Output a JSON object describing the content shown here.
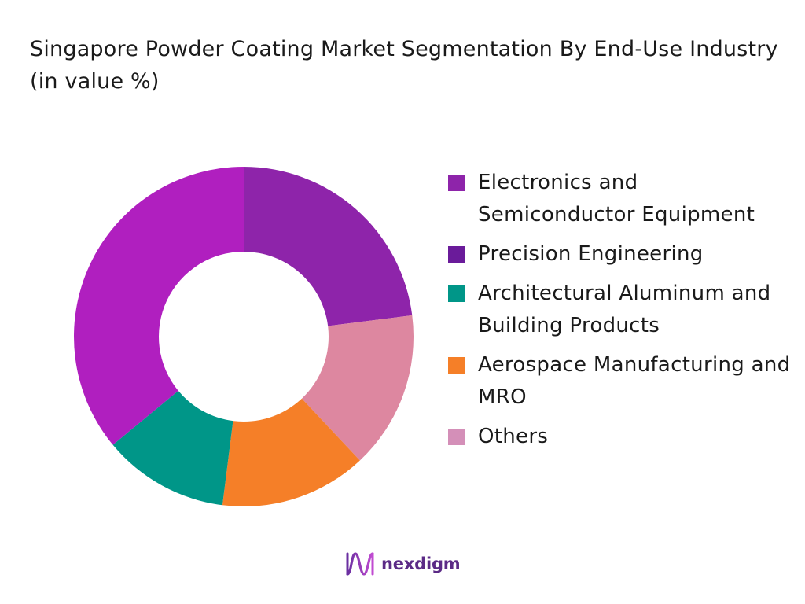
{
  "title": "Singapore Powder Coating Market Segmentation By End-Use Industry (in value %)",
  "chart_data": {
    "type": "pie",
    "donut": true,
    "legend_position": "right",
    "categories": [
      "Electronics and Semiconductor Equipment",
      "Precision Engineering",
      "Architectural Aluminum and Building Products",
      "Aerospace Manufacturing and MRO",
      "Others"
    ],
    "values": [
      23,
      36,
      12,
      14,
      15
    ],
    "colors": [
      "#8e24aa",
      "#b01fbf",
      "#009688",
      "#f57f28",
      "#dd87a0"
    ],
    "legend_colors": [
      "#8e24aa",
      "#6a1b9a",
      "#009688",
      "#f57f28",
      "#d48fb8"
    ],
    "slice_order": [
      0,
      4,
      3,
      2,
      1
    ]
  },
  "legend": [
    {
      "label": "Electronics and Semiconductor Equipment"
    },
    {
      "label": "Precision Engineering"
    },
    {
      "label": "Architectural Aluminum and Building Products"
    },
    {
      "label": "Aerospace Manufacturing and MRO"
    },
    {
      "label": "Others"
    }
  ],
  "logo": {
    "text": "nexdigm",
    "icon": "nexdigm-wave-icon"
  }
}
